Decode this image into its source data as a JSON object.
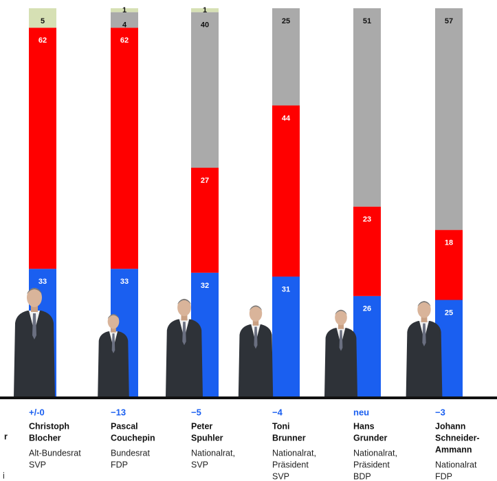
{
  "chart_data": {
    "type": "stacked-bar",
    "series": [
      {
        "color": "#1a5ff0",
        "values": [
          33,
          33,
          32,
          31,
          26,
          25
        ]
      },
      {
        "color": "#ff0000",
        "values": [
          62,
          62,
          27,
          44,
          23,
          18
        ]
      },
      {
        "color": "#aaaaaa",
        "values": [
          null,
          4,
          40,
          25,
          51,
          57
        ]
      },
      {
        "color": "#d6e0b4",
        "values": [
          5,
          1,
          1,
          null,
          null,
          null
        ]
      }
    ],
    "ylim": [
      0,
      100
    ]
  },
  "candidates": [
    {
      "change": "+/-0",
      "name": [
        "Christoph",
        "Blocher"
      ],
      "role": [
        "Alt-Bundesrat",
        "SVP"
      ]
    },
    {
      "change": "−13",
      "name": [
        "Pascal",
        "Couchepin"
      ],
      "role": [
        "Bundesrat",
        "FDP"
      ]
    },
    {
      "change": "−5",
      "name": [
        "Peter",
        "Spuhler"
      ],
      "role": [
        "Nationalrat,",
        "SVP"
      ]
    },
    {
      "change": "−4",
      "name": [
        "Toni",
        "Brunner"
      ],
      "role": [
        "Nationalrat,",
        "Präsident",
        "SVP"
      ]
    },
    {
      "change": "neu",
      "name": [
        "Hans",
        "Grunder"
      ],
      "role": [
        "Nationalrat,",
        "Präsident",
        "BDP"
      ]
    },
    {
      "change": "−3",
      "name": [
        "Johann",
        "Schneider-",
        "Ammann"
      ],
      "role": [
        "Nationalrat",
        "FDP"
      ]
    }
  ],
  "margin_text": [
    "r",
    "i"
  ]
}
